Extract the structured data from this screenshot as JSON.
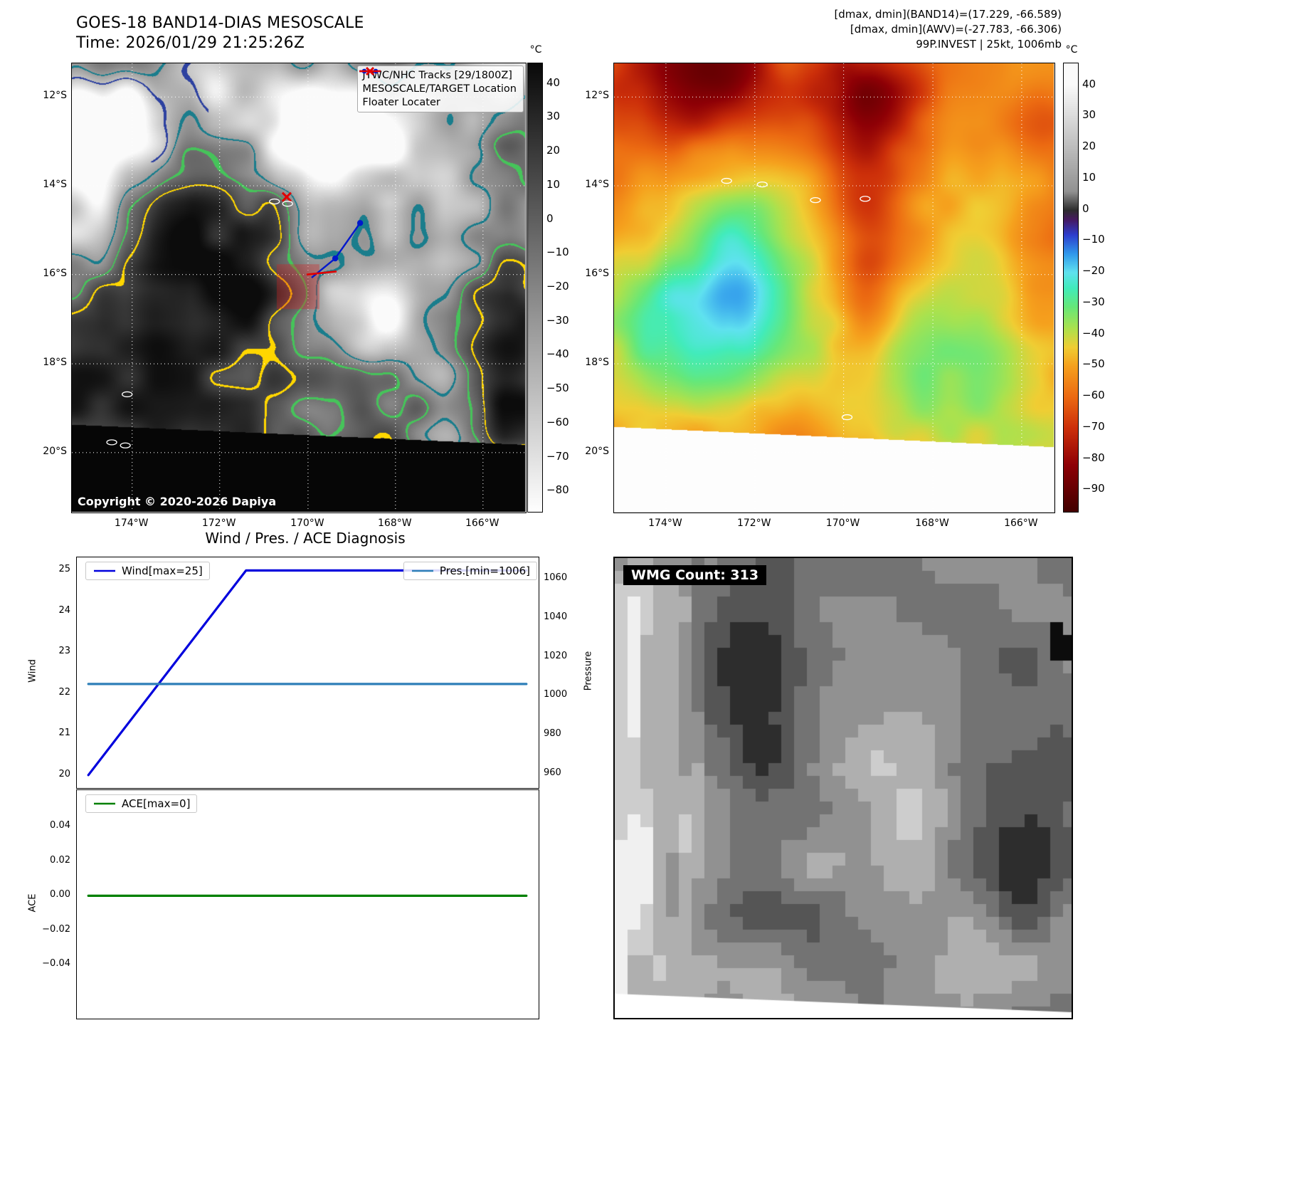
{
  "band14": {
    "title": "GOES-18 BAND14-DIAS MESOSCALE",
    "time": "Time: 2026/01/29 21:25:26Z",
    "copyright": "Copyright © 2020-2026 Dapiya",
    "legend": {
      "track": "JTWC/NHC Tracks [29/1800Z]",
      "target": "MESOSCALE/TARGET Location",
      "floater": "Floater Locater"
    },
    "legend_colors": {
      "track": "#0018cc",
      "target": "#e00000",
      "floater": "#e00000"
    },
    "colorbar_unit": "°C",
    "colorbar_ticks": [
      "40",
      "30",
      "20",
      "10",
      "0",
      "−10",
      "−20",
      "−30",
      "−40",
      "−50",
      "−60",
      "−70",
      "−80"
    ],
    "lat_ticks": [
      "12°S",
      "14°S",
      "16°S",
      "18°S",
      "20°S"
    ],
    "lon_ticks": [
      "174°W",
      "172°W",
      "170°W",
      "168°W",
      "166°W"
    ],
    "overlays": {
      "track_points": [
        [
          0.636,
          0.356
        ],
        [
          0.581,
          0.435
        ],
        [
          0.529,
          0.478
        ]
      ],
      "floater_line": [
        [
          0.518,
          0.471
        ],
        [
          0.584,
          0.464
        ]
      ],
      "target_marker": [
        0.474,
        0.298
      ],
      "target_box": [
        0.452,
        0.448,
        0.546,
        0.548
      ],
      "islands": [
        [
          0.447,
          0.308
        ],
        [
          0.476,
          0.313
        ],
        [
          0.122,
          0.738
        ],
        [
          0.088,
          0.845
        ],
        [
          0.118,
          0.852
        ]
      ]
    }
  },
  "awv": {
    "header": [
      "[dmax, dmin](BAND14)=(17.229, -66.589)",
      "[dmax, dmin](AWV)=(-27.783, -66.306)",
      "99P.INVEST | 25kt, 1006mb"
    ],
    "colorbar_unit": "°C",
    "colorbar_ticks": [
      "40",
      "30",
      "20",
      "10",
      "0",
      "−10",
      "−20",
      "−30",
      "−40",
      "−50",
      "−60",
      "−70",
      "−80",
      "−90"
    ],
    "lat_ticks": [
      "12°S",
      "14°S",
      "16°S",
      "18°S",
      "20°S"
    ],
    "lon_ticks": [
      "174°W",
      "172°W",
      "170°W",
      "168°W",
      "166°W"
    ],
    "islands": [
      [
        0.256,
        0.262
      ],
      [
        0.337,
        0.27
      ],
      [
        0.458,
        0.305
      ],
      [
        0.571,
        0.302
      ],
      [
        0.53,
        0.789
      ]
    ]
  },
  "diagnosis": {
    "title": "Wind / Pres. / ACE Diagnosis",
    "wind_ylabel": "Wind",
    "pressure_ylabel": "Pressure",
    "ace_ylabel": "ACE",
    "wind_legend": "Wind[max=25]",
    "pres_legend": "Pres.[min=1006]",
    "ace_legend": "ACE[max=0]"
  },
  "wmg": {
    "label": "WMG Count: 313"
  },
  "chart_data": [
    {
      "type": "line",
      "panel": "wind-pressure",
      "title": "Wind / Pres. / ACE Diagnosis",
      "series": [
        {
          "name": "Wind[max=25]",
          "color": "#0000dd",
          "axis": "left",
          "x": [
            0,
            0.36,
            1
          ],
          "y": [
            20,
            25,
            25
          ]
        },
        {
          "name": "Pres.[min=1006]",
          "color": "#2e7fb8",
          "axis": "right",
          "x": [
            0,
            1
          ],
          "y": [
            1006,
            1006
          ]
        }
      ],
      "left_axis": {
        "label": "Wind",
        "tick_labels": [
          "25",
          "24",
          "23",
          "22",
          "21",
          "20"
        ],
        "tick_values": [
          25,
          24,
          23,
          22,
          21,
          20
        ],
        "range": [
          19.7,
          25.32
        ]
      },
      "right_axis": {
        "label": "Pressure",
        "tick_labels": [
          "1060",
          "1040",
          "1020",
          "1000",
          "980",
          "960"
        ],
        "tick_values": [
          1060,
          1040,
          1020,
          1000,
          980,
          960
        ],
        "range": [
          953,
          1071
        ]
      },
      "x_axis": {
        "tick_labels": []
      }
    },
    {
      "type": "line",
      "panel": "ace",
      "series": [
        {
          "name": "ACE[max=0]",
          "color": "#008000",
          "axis": "left",
          "x": [
            0,
            1
          ],
          "y": [
            0,
            0
          ]
        }
      ],
      "left_axis": {
        "label": "ACE",
        "tick_labels": [
          "0.04",
          "0.02",
          "0.00",
          "−0.02",
          "−0.04"
        ],
        "tick_values": [
          0.04,
          0.02,
          0,
          -0.02,
          -0.04
        ],
        "range": [
          -0.0708,
          0.0612
        ]
      },
      "x_axis": {
        "tick_labels": []
      }
    },
    {
      "type": "heatmap",
      "panel": "band14-ir",
      "title": "GOES-18 BAND14-DIAS MESOSCALE",
      "units": "°C",
      "colorbar_range": [
        -80,
        40
      ],
      "palette": "inverted-grayscale"
    },
    {
      "type": "heatmap",
      "panel": "awv",
      "units": "°C",
      "colorbar_range": [
        -90,
        40
      ],
      "palette": "gray-purple-blue-cyan-green-orange-darkred",
      "annotations": [
        "99P.INVEST | 25kt, 1006mb"
      ]
    }
  ]
}
